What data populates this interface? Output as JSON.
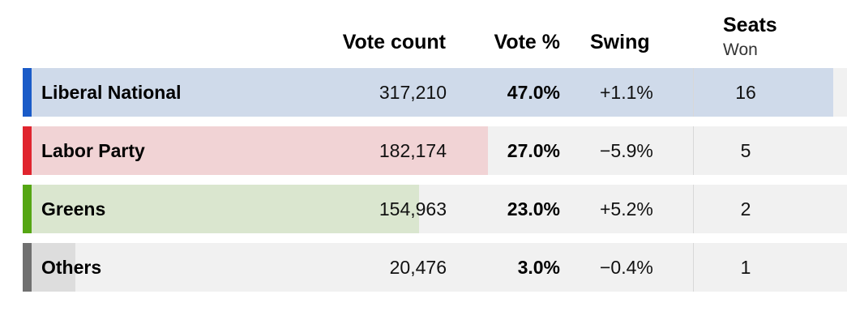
{
  "header": {
    "vote_count": "Vote count",
    "vote_pct": "Vote %",
    "swing": "Swing",
    "seats": "Seats",
    "seats_sub": "Won"
  },
  "parties": [
    {
      "name": "Liberal National",
      "votes": "317,210",
      "pct": "47.0%",
      "swing": "+1.1%",
      "seats": "16",
      "color": "#1a5bc8",
      "fill_color": "#cfdaea",
      "fill_fraction": 1.0
    },
    {
      "name": "Labor Party",
      "votes": "182,174",
      "pct": "27.0%",
      "swing": "−5.9%",
      "seats": "5",
      "color": "#e0242e",
      "fill_color": "#f1d3d5",
      "fill_fraction": 0.574
    },
    {
      "name": "Greens",
      "votes": "154,963",
      "pct": "23.0%",
      "swing": "+5.2%",
      "seats": "2",
      "color": "#55a613",
      "fill_color": "#dae6cf",
      "fill_fraction": 0.489
    },
    {
      "name": "Others",
      "votes": "20,476",
      "pct": "3.0%",
      "swing": "−0.4%",
      "seats": "1",
      "color": "#707070",
      "fill_color": "#dddddd",
      "fill_fraction": 0.065
    }
  ]
}
